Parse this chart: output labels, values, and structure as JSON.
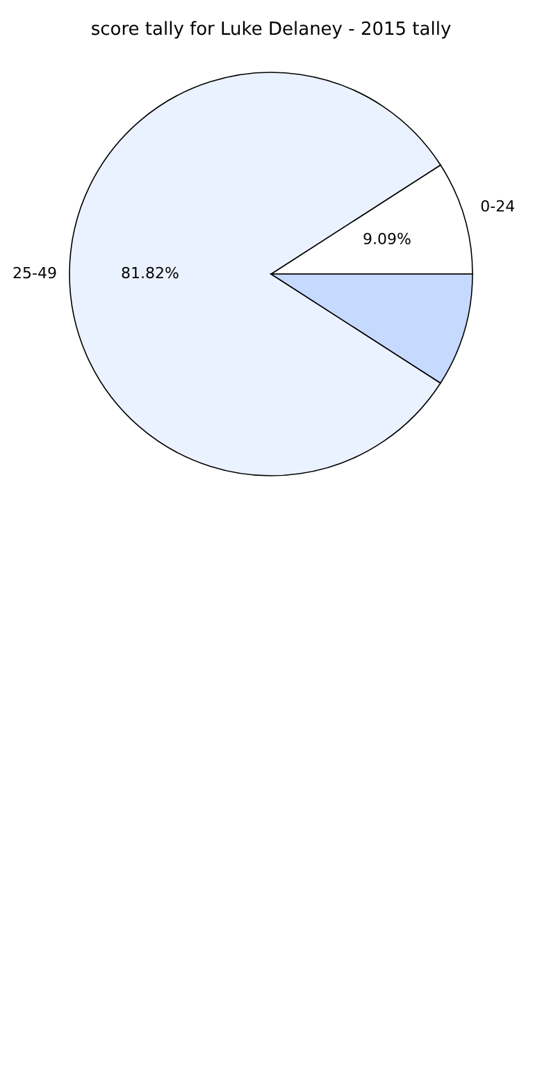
{
  "chart_data": {
    "type": "pie",
    "title": "score tally for Luke Delaney - 2015 tally",
    "categories": [
      "0-24",
      "25-49",
      null
    ],
    "values": [
      9.09,
      81.82,
      9.09
    ],
    "colors": [
      "#ffffff",
      "#ebf2ff",
      "#c6d9fe"
    ],
    "value_labels": [
      "9.09%",
      "81.82%",
      null
    ],
    "legend": false
  }
}
